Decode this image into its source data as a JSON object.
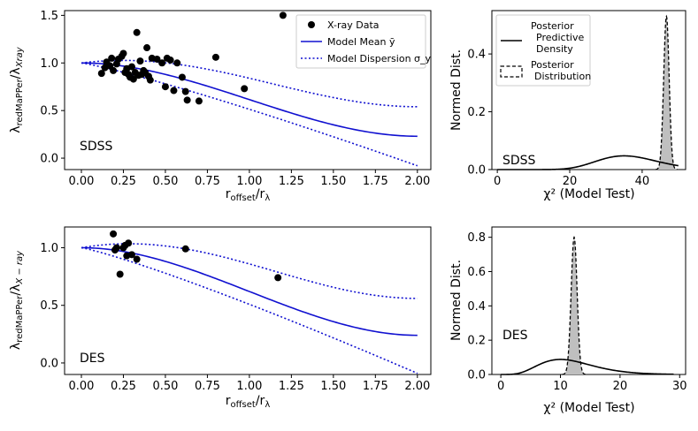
{
  "chart_data": [
    {
      "id": "sdss_ratio",
      "type": "scatter",
      "survey_label": "SDSS",
      "xlabel": "r_offset/r_λ",
      "ylabel": "λ_redMaPPer/λ_Xray",
      "xlim": [
        -0.1,
        2.08
      ],
      "ylim": [
        -0.12,
        1.55
      ],
      "xticks": [
        0.0,
        0.25,
        0.5,
        0.75,
        1.0,
        1.25,
        1.5,
        1.75,
        2.0
      ],
      "xtick_labels": [
        "0.00",
        "0.25",
        "0.50",
        "0.75",
        "1.00",
        "1.25",
        "1.50",
        "1.75",
        "2.00"
      ],
      "yticks": [
        0.0,
        0.5,
        1.0,
        1.5
      ],
      "ytick_labels": [
        "0.0",
        "0.5",
        "1.0",
        "1.5"
      ],
      "legend": {
        "position": "top-right",
        "entries": [
          "X-ray Data",
          "Model Mean ȳ",
          "Model Dispersion σ_y"
        ]
      },
      "curves": {
        "mean_start": 1.0,
        "mean_end": 0.23,
        "mean_peak_amp": 0.0,
        "upper_start": 1.0,
        "upper_end": 0.54,
        "upper_peak": 1.07,
        "lower_start": 1.0,
        "lower_end": -0.08
      },
      "points": [
        {
          "x": 0.12,
          "y": 0.89
        },
        {
          "x": 0.14,
          "y": 0.95
        },
        {
          "x": 0.15,
          "y": 1.01
        },
        {
          "x": 0.17,
          "y": 0.97
        },
        {
          "x": 0.18,
          "y": 1.05
        },
        {
          "x": 0.19,
          "y": 0.92
        },
        {
          "x": 0.21,
          "y": 0.99
        },
        {
          "x": 0.22,
          "y": 1.04
        },
        {
          "x": 0.24,
          "y": 1.07
        },
        {
          "x": 0.25,
          "y": 1.1
        },
        {
          "x": 0.26,
          "y": 0.9
        },
        {
          "x": 0.27,
          "y": 0.94
        },
        {
          "x": 0.28,
          "y": 0.88
        },
        {
          "x": 0.29,
          "y": 0.85
        },
        {
          "x": 0.3,
          "y": 0.96
        },
        {
          "x": 0.31,
          "y": 0.83
        },
        {
          "x": 0.32,
          "y": 0.9
        },
        {
          "x": 0.33,
          "y": 1.32
        },
        {
          "x": 0.34,
          "y": 0.87
        },
        {
          "x": 0.35,
          "y": 1.02
        },
        {
          "x": 0.36,
          "y": 0.88
        },
        {
          "x": 0.37,
          "y": 0.92
        },
        {
          "x": 0.38,
          "y": 0.9
        },
        {
          "x": 0.39,
          "y": 1.16
        },
        {
          "x": 0.4,
          "y": 0.86
        },
        {
          "x": 0.41,
          "y": 0.82
        },
        {
          "x": 0.42,
          "y": 1.05
        },
        {
          "x": 0.45,
          "y": 1.04
        },
        {
          "x": 0.48,
          "y": 1.0
        },
        {
          "x": 0.5,
          "y": 0.75
        },
        {
          "x": 0.51,
          "y": 1.05
        },
        {
          "x": 0.53,
          "y": 1.03
        },
        {
          "x": 0.55,
          "y": 0.71
        },
        {
          "x": 0.57,
          "y": 1.0
        },
        {
          "x": 0.6,
          "y": 0.85
        },
        {
          "x": 0.62,
          "y": 0.7
        },
        {
          "x": 0.63,
          "y": 0.61
        },
        {
          "x": 0.7,
          "y": 0.6
        },
        {
          "x": 0.8,
          "y": 1.06
        },
        {
          "x": 0.97,
          "y": 0.73
        },
        {
          "x": 1.2,
          "y": 1.5
        }
      ]
    },
    {
      "id": "sdss_chi2",
      "type": "line",
      "survey_label": "SDSS",
      "xlabel": "χ² (Model Test)",
      "ylabel": "Normed Dist.",
      "xlim": [
        -1.5,
        52
      ],
      "ylim": [
        0,
        0.55
      ],
      "xticks": [
        0,
        20,
        40
      ],
      "xtick_labels": [
        "0",
        "20",
        "40"
      ],
      "yticks": [
        0.0,
        0.2,
        0.4
      ],
      "ytick_labels": [
        "0.0",
        "0.2",
        "0.4"
      ],
      "legend": {
        "position": "top-left",
        "entries": [
          [
            "Posterior",
            "Predictive",
            "Density"
          ],
          [
            "Posterior",
            "Distribution"
          ]
        ]
      },
      "predictive": {
        "k": 37,
        "range": [
          0,
          50
        ]
      },
      "posterior": {
        "mean": 46.7,
        "sigma": 0.75,
        "peak": 0.53
      }
    },
    {
      "id": "des_ratio",
      "type": "scatter",
      "survey_label": "DES",
      "xlabel": "r_offset/r_λ",
      "ylabel": "λ_redMaPPer/λ_X-ray",
      "xlim": [
        -0.1,
        2.08
      ],
      "ylim": [
        -0.1,
        1.18
      ],
      "xticks": [
        0.0,
        0.25,
        0.5,
        0.75,
        1.0,
        1.25,
        1.5,
        1.75,
        2.0
      ],
      "xtick_labels": [
        "0.00",
        "0.25",
        "0.50",
        "0.75",
        "1.00",
        "1.25",
        "1.50",
        "1.75",
        "2.00"
      ],
      "yticks": [
        0.0,
        0.5,
        1.0
      ],
      "ytick_labels": [
        "0.0",
        "0.5",
        "1.0"
      ],
      "curves": {
        "mean_start": 1.0,
        "mean_end": 0.24,
        "mean_peak_amp": 0.0,
        "upper_start": 1.0,
        "upper_end": 0.56,
        "upper_peak": 1.08,
        "lower_start": 1.0,
        "lower_end": -0.09
      },
      "points": [
        {
          "x": 0.19,
          "y": 1.12
        },
        {
          "x": 0.2,
          "y": 0.98
        },
        {
          "x": 0.21,
          "y": 1.0
        },
        {
          "x": 0.23,
          "y": 0.77
        },
        {
          "x": 0.25,
          "y": 1.0
        },
        {
          "x": 0.26,
          "y": 1.02
        },
        {
          "x": 0.27,
          "y": 0.93
        },
        {
          "x": 0.28,
          "y": 1.04
        },
        {
          "x": 0.3,
          "y": 0.94
        },
        {
          "x": 0.33,
          "y": 0.9
        },
        {
          "x": 0.62,
          "y": 0.99
        },
        {
          "x": 1.17,
          "y": 0.74
        }
      ]
    },
    {
      "id": "des_chi2",
      "type": "line",
      "survey_label": "DES",
      "xlabel": "χ² (Model Test)",
      "ylabel": "Normed Dist.",
      "xlim": [
        -1.5,
        31
      ],
      "ylim": [
        0,
        0.86
      ],
      "xticks": [
        0,
        10,
        20,
        30
      ],
      "xtick_labels": [
        "0",
        "10",
        "20",
        "30"
      ],
      "yticks": [
        0.0,
        0.2,
        0.4,
        0.6,
        0.8
      ],
      "ytick_labels": [
        "0.0",
        "0.2",
        "0.4",
        "0.6",
        "0.8"
      ],
      "predictive": {
        "k": 12,
        "range": [
          0,
          29
        ]
      },
      "posterior": {
        "mean": 12.3,
        "sigma": 0.5,
        "peak": 0.8
      }
    }
  ],
  "colors": {
    "model": "#1010d0",
    "points": "#000000",
    "fill": "#bfbfbf",
    "axis": "#000000"
  }
}
